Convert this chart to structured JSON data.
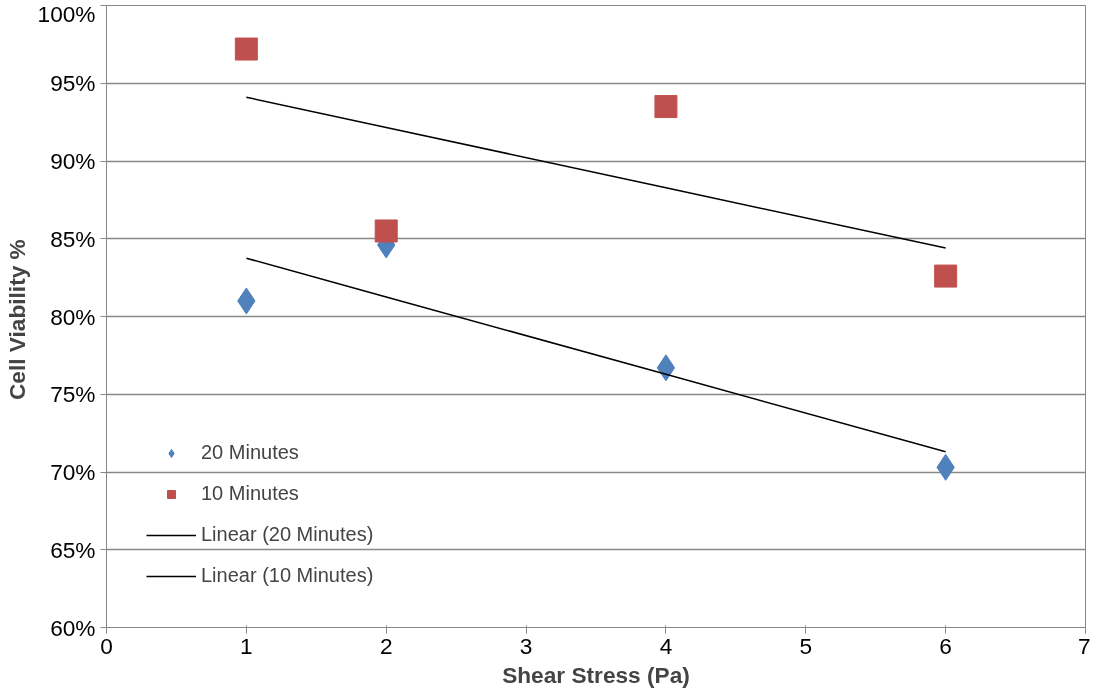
{
  "chart_data": {
    "type": "scatter",
    "xlabel": "Shear Stress (Pa)",
    "ylabel": "Cell  Viability %",
    "x": [
      1,
      2,
      4,
      6
    ],
    "series": [
      {
        "name": "20 Minutes",
        "color": "#4f81bd",
        "marker": "diamond",
        "values": [
          81.0,
          84.6,
          76.7,
          70.3
        ]
      },
      {
        "name": "10 Minutes",
        "color": "#c0504d",
        "marker": "square",
        "values": [
          97.2,
          85.5,
          93.5,
          82.6
        ]
      },
      {
        "name": "Linear (20 Minutes)",
        "type": "line",
        "color": "#000000",
        "marker": "none",
        "line_style": "solid",
        "values": [
          83.75,
          81.26,
          76.28,
          71.3
        ]
      },
      {
        "name": "Linear (10 Minutes)",
        "type": "line",
        "color": "#000000",
        "marker": "none",
        "line_style": "solid",
        "values": [
          94.1,
          92.16,
          88.28,
          84.4
        ]
      }
    ],
    "xlim": [
      0,
      7
    ],
    "xticks": [
      0,
      1,
      2,
      3,
      4,
      5,
      6,
      7
    ],
    "ylim": [
      60,
      100
    ],
    "yticks": [
      {
        "value": 60,
        "label": "60%"
      },
      {
        "value": 65,
        "label": "65%"
      },
      {
        "value": 70,
        "label": "70%"
      },
      {
        "value": 75,
        "label": "75%"
      },
      {
        "value": 80,
        "label": "80%"
      },
      {
        "value": 85,
        "label": "85%"
      },
      {
        "value": 90,
        "label": "90%"
      },
      {
        "value": 95,
        "label": "95%"
      },
      {
        "value": 100,
        "label": "100%"
      }
    ],
    "grid": "y",
    "legend": "bottom left"
  }
}
